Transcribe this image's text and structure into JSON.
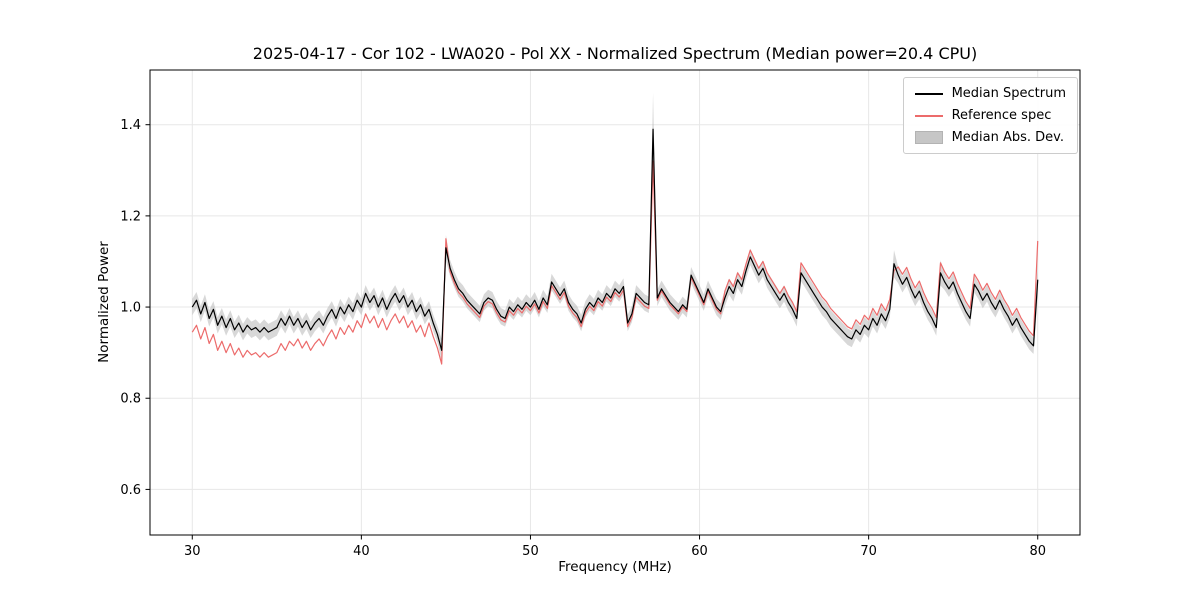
{
  "chart_data": {
    "type": "line",
    "title": "2025-04-17 - Cor 102 - LWA020 - Pol XX - Normalized Spectrum (Median power=20.4 CPU)",
    "xlabel": "Frequency (MHz)",
    "ylabel": "Normalized Power",
    "xlim": [
      27.5,
      82.5
    ],
    "ylim": [
      0.5,
      1.52
    ],
    "xticks": [
      30,
      40,
      50,
      60,
      70,
      80
    ],
    "xtick_labels": [
      "30",
      "40",
      "50",
      "60",
      "70",
      "80"
    ],
    "yticks": [
      0.6,
      0.8,
      1.0,
      1.2,
      1.4
    ],
    "ytick_labels": [
      "0.6",
      "0.8",
      "1.0",
      "1.2",
      "1.4"
    ],
    "grid": true,
    "colors": {
      "grid": "#e7e7e7",
      "axes": "#000000",
      "background": "#ffffff"
    },
    "legend": {
      "position": "upper right",
      "items": [
        {
          "label": "Median Spectrum",
          "color": "#000000",
          "type": "line"
        },
        {
          "label": "Reference spec",
          "color": "#ec6b6b",
          "type": "line"
        },
        {
          "label": "Median Abs. Dev.",
          "color": "#bdbdbd",
          "type": "patch"
        }
      ]
    },
    "x_start": 30.0,
    "x_step": 0.25,
    "series": [
      {
        "name": "Median Spectrum",
        "color": "#000000",
        "values": [
          1.0,
          1.015,
          0.985,
          1.01,
          0.975,
          0.995,
          0.96,
          0.98,
          0.955,
          0.975,
          0.95,
          0.965,
          0.945,
          0.96,
          0.95,
          0.955,
          0.945,
          0.955,
          0.945,
          0.95,
          0.955,
          0.975,
          0.96,
          0.98,
          0.96,
          0.975,
          0.955,
          0.97,
          0.95,
          0.965,
          0.975,
          0.96,
          0.98,
          0.995,
          0.975,
          1.0,
          0.985,
          1.005,
          0.99,
          1.015,
          1.0,
          1.03,
          1.01,
          1.025,
          1.0,
          1.02,
          0.995,
          1.015,
          1.03,
          1.01,
          1.025,
          1.0,
          1.015,
          0.99,
          1.005,
          0.98,
          0.995,
          0.965,
          0.94,
          0.905,
          1.13,
          1.085,
          1.06,
          1.04,
          1.03,
          1.015,
          1.005,
          0.995,
          0.985,
          1.01,
          1.02,
          1.015,
          0.995,
          0.98,
          0.975,
          1.0,
          0.99,
          1.005,
          0.995,
          1.01,
          1.0,
          1.015,
          0.995,
          1.02,
          1.005,
          1.055,
          1.04,
          1.025,
          1.04,
          1.01,
          0.995,
          0.985,
          0.965,
          0.995,
          1.01,
          1.0,
          1.02,
          1.01,
          1.03,
          1.02,
          1.04,
          1.03,
          1.045,
          0.965,
          0.985,
          1.03,
          1.02,
          1.01,
          1.005,
          1.39,
          1.02,
          1.04,
          1.025,
          1.01,
          1.0,
          0.99,
          1.005,
          0.995,
          1.07,
          1.05,
          1.03,
          1.01,
          1.04,
          1.02,
          1.0,
          0.99,
          1.02,
          1.045,
          1.03,
          1.06,
          1.045,
          1.08,
          1.11,
          1.09,
          1.07,
          1.085,
          1.06,
          1.045,
          1.03,
          1.015,
          1.03,
          1.01,
          0.995,
          0.975,
          1.075,
          1.06,
          1.045,
          1.03,
          1.015,
          1.0,
          0.99,
          0.975,
          0.965,
          0.955,
          0.945,
          0.935,
          0.93,
          0.95,
          0.94,
          0.96,
          0.95,
          0.975,
          0.96,
          0.985,
          0.97,
          0.995,
          1.095,
          1.07,
          1.05,
          1.065,
          1.04,
          1.02,
          1.035,
          1.01,
          0.99,
          0.975,
          0.955,
          1.075,
          1.055,
          1.04,
          1.055,
          1.03,
          1.01,
          0.99,
          0.975,
          1.05,
          1.035,
          1.015,
          1.03,
          1.01,
          0.995,
          1.015,
          0.995,
          0.98,
          0.96,
          0.975,
          0.955,
          0.94,
          0.925,
          0.915,
          1.06
        ]
      },
      {
        "name": "Reference spec",
        "color": "#ec6b6b",
        "values": [
          0.945,
          0.96,
          0.93,
          0.955,
          0.92,
          0.94,
          0.905,
          0.925,
          0.9,
          0.92,
          0.895,
          0.91,
          0.89,
          0.905,
          0.895,
          0.9,
          0.89,
          0.9,
          0.89,
          0.895,
          0.9,
          0.92,
          0.905,
          0.925,
          0.915,
          0.93,
          0.91,
          0.925,
          0.905,
          0.92,
          0.93,
          0.915,
          0.935,
          0.95,
          0.93,
          0.955,
          0.94,
          0.96,
          0.945,
          0.97,
          0.955,
          0.985,
          0.965,
          0.98,
          0.955,
          0.975,
          0.95,
          0.97,
          0.985,
          0.965,
          0.98,
          0.955,
          0.97,
          0.945,
          0.96,
          0.935,
          0.965,
          0.935,
          0.91,
          0.875,
          1.15,
          1.077,
          1.052,
          1.032,
          1.022,
          1.007,
          0.997,
          0.987,
          0.977,
          1.002,
          1.012,
          1.007,
          0.987,
          0.972,
          0.967,
          0.992,
          0.982,
          0.997,
          0.987,
          1.002,
          0.992,
          1.007,
          0.987,
          1.012,
          0.997,
          1.047,
          1.032,
          1.017,
          1.032,
          1.002,
          0.987,
          0.977,
          0.957,
          0.987,
          1.002,
          0.992,
          1.012,
          1.002,
          1.022,
          1.012,
          1.032,
          1.022,
          1.037,
          0.957,
          0.977,
          1.022,
          1.012,
          1.002,
          0.997,
          1.32,
          1.015,
          1.035,
          1.02,
          1.005,
          0.995,
          0.985,
          1.0,
          0.99,
          1.065,
          1.045,
          1.025,
          1.005,
          1.035,
          1.015,
          0.995,
          0.985,
          1.035,
          1.06,
          1.045,
          1.075,
          1.06,
          1.095,
          1.125,
          1.105,
          1.085,
          1.1,
          1.075,
          1.06,
          1.045,
          1.03,
          1.045,
          1.025,
          1.01,
          0.99,
          1.097,
          1.082,
          1.067,
          1.052,
          1.037,
          1.022,
          1.012,
          0.997,
          0.987,
          0.977,
          0.967,
          0.957,
          0.952,
          0.972,
          0.962,
          0.982,
          0.972,
          0.997,
          0.982,
          1.007,
          0.992,
          1.017,
          1.08,
          1.088,
          1.072,
          1.087,
          1.062,
          1.042,
          1.057,
          1.032,
          1.012,
          0.997,
          0.977,
          1.097,
          1.077,
          1.062,
          1.077,
          1.052,
          1.032,
          1.012,
          0.997,
          1.072,
          1.057,
          1.037,
          1.052,
          1.032,
          1.017,
          1.037,
          1.017,
          1.002,
          0.982,
          0.997,
          0.977,
          0.962,
          0.947,
          0.937,
          1.145
        ]
      }
    ],
    "mad_band": {
      "around": "Median Spectrum",
      "default": 0.018,
      "overrides": {
        "44.75": 0.025,
        "45": 0.028,
        "57.25": 0.08,
        "71.5": 0.03,
        "74.25": 0.028,
        "80": 0.035
      },
      "color": "#b8b8b8",
      "opacity": 0.55
    }
  }
}
